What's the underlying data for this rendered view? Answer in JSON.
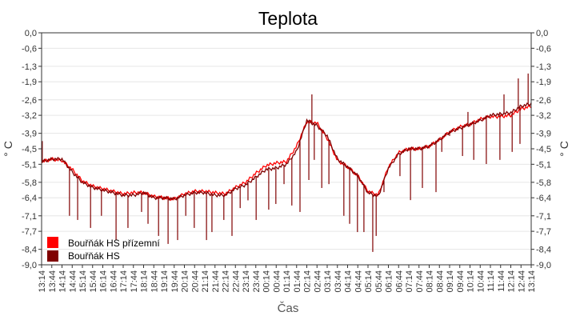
{
  "chart_data": {
    "type": "line",
    "title": "Teplota",
    "xlabel": "Čas",
    "ylabel": "° C",
    "ylim": [
      -9.0,
      0.0
    ],
    "yticks": [
      "0,0",
      "-0,6",
      "-1,3",
      "-1,9",
      "-2,6",
      "-3,2",
      "-3,9",
      "-4,5",
      "-5,1",
      "-5,8",
      "-6,4",
      "-7,1",
      "-7,7",
      "-8,4",
      "-9,0"
    ],
    "ytick_values": [
      0.0,
      -0.6,
      -1.3,
      -1.9,
      -2.6,
      -3.2,
      -3.9,
      -4.5,
      -5.1,
      -5.8,
      -6.4,
      -7.1,
      -7.7,
      -8.4,
      -9.0
    ],
    "x": [
      "13:14",
      "13:44",
      "14:14",
      "14:44",
      "15:14",
      "15:44",
      "16:14",
      "16:44",
      "17:14",
      "17:44",
      "18:14",
      "18:44",
      "19:14",
      "19:44",
      "20:14",
      "20:44",
      "21:14",
      "21:44",
      "22:14",
      "22:44",
      "23:14",
      "23:44",
      "00:14",
      "00:44",
      "01:14",
      "01:44",
      "02:14",
      "02:44",
      "03:14",
      "03:44",
      "04:14",
      "04:44",
      "05:14",
      "05:44",
      "06:14",
      "06:44",
      "07:14",
      "07:44",
      "08:14",
      "08:44",
      "09:14",
      "09:44",
      "10:14",
      "10:44",
      "11:14",
      "11:44",
      "12:14",
      "12:44",
      "13:14"
    ],
    "grid": true,
    "legend_position": "bottom-left",
    "series": [
      {
        "name": "Bouřňák HS přízemní",
        "color": "#ff0000",
        "values": [
          -5.0,
          -4.9,
          -4.95,
          -5.3,
          -5.75,
          -5.95,
          -6.05,
          -6.15,
          -6.25,
          -6.2,
          -6.2,
          -6.35,
          -6.4,
          -6.45,
          -6.25,
          -6.15,
          -6.15,
          -6.2,
          -6.25,
          -6.0,
          -5.8,
          -5.45,
          -5.15,
          -5.05,
          -5.0,
          -4.4,
          -3.45,
          -3.5,
          -4.1,
          -4.95,
          -5.2,
          -5.55,
          -6.15,
          -6.3,
          -5.2,
          -4.65,
          -4.5,
          -4.5,
          -4.4,
          -4.15,
          -3.85,
          -3.65,
          -3.55,
          -3.35,
          -3.25,
          -3.25,
          -3.2,
          -2.95,
          -2.85
        ]
      },
      {
        "name": "Bouřňák HS",
        "color": "#800000",
        "values": [
          -5.0,
          -4.9,
          -4.9,
          -5.4,
          -5.8,
          -6.0,
          -6.1,
          -6.2,
          -6.3,
          -6.3,
          -6.2,
          -6.4,
          -6.4,
          -6.45,
          -6.3,
          -6.2,
          -6.2,
          -6.3,
          -6.3,
          -6.05,
          -5.9,
          -5.6,
          -5.3,
          -5.25,
          -5.1,
          -4.6,
          -3.4,
          -3.6,
          -4.0,
          -4.9,
          -5.2,
          -5.55,
          -6.2,
          -6.35,
          -5.25,
          -4.7,
          -4.5,
          -4.5,
          -4.4,
          -4.15,
          -3.85,
          -3.7,
          -3.55,
          -3.4,
          -3.2,
          -3.15,
          -3.1,
          -2.85,
          -2.75
        ],
        "spikes": [
          [
            "13:16",
            -4.2
          ],
          [
            "14:36",
            -7.1
          ],
          [
            "15:00",
            -7.26
          ],
          [
            "15:38",
            -7.57
          ],
          [
            "16:10",
            -7.1
          ],
          [
            "16:53",
            -8.04
          ],
          [
            "17:28",
            -7.57
          ],
          [
            "18:08",
            -6.95
          ],
          [
            "18:27",
            -7.41
          ],
          [
            "18:58",
            -7.88
          ],
          [
            "19:26",
            -8.19
          ],
          [
            "19:54",
            -8.04
          ],
          [
            "20:18",
            -7.1
          ],
          [
            "20:43",
            -7.57
          ],
          [
            "21:19",
            -8.04
          ],
          [
            "21:35",
            -7.73
          ],
          [
            "22:10",
            -7.26
          ],
          [
            "22:34",
            -7.88
          ],
          [
            "22:58",
            -6.8
          ],
          [
            "23:21",
            -6.5
          ],
          [
            "23:45",
            -7.26
          ],
          [
            "00:22",
            -6.86
          ],
          [
            "00:43",
            -6.64
          ],
          [
            "01:07",
            -5.87
          ],
          [
            "01:30",
            -6.7
          ],
          [
            "01:54",
            -6.95
          ],
          [
            "02:20",
            -5.71
          ],
          [
            "02:29",
            -2.39
          ],
          [
            "02:36",
            -4.93
          ],
          [
            "02:58",
            -6.02
          ],
          [
            "03:19",
            -5.87
          ],
          [
            "04:03",
            -7.1
          ],
          [
            "04:20",
            -7.41
          ],
          [
            "04:43",
            -7.73
          ],
          [
            "05:02",
            -7.73
          ],
          [
            "05:28",
            -8.5
          ],
          [
            "05:38",
            -7.88
          ],
          [
            "06:01",
            -6.18
          ],
          [
            "06:48",
            -5.56
          ],
          [
            "07:19",
            -6.49
          ],
          [
            "07:54",
            -6.02
          ],
          [
            "08:34",
            -6.18
          ],
          [
            "08:51",
            -4.62
          ],
          [
            "09:14",
            -4.0
          ],
          [
            "09:52",
            -4.78
          ],
          [
            "10:08",
            -3.07
          ],
          [
            "10:25",
            -4.93
          ],
          [
            "11:02",
            -5.09
          ],
          [
            "11:42",
            -4.93
          ],
          [
            "11:54",
            -2.39
          ],
          [
            "12:18",
            -4.62
          ],
          [
            "12:36",
            -1.77
          ],
          [
            "12:41",
            -4.31
          ],
          [
            "13:05",
            -1.58
          ]
        ]
      }
    ]
  }
}
